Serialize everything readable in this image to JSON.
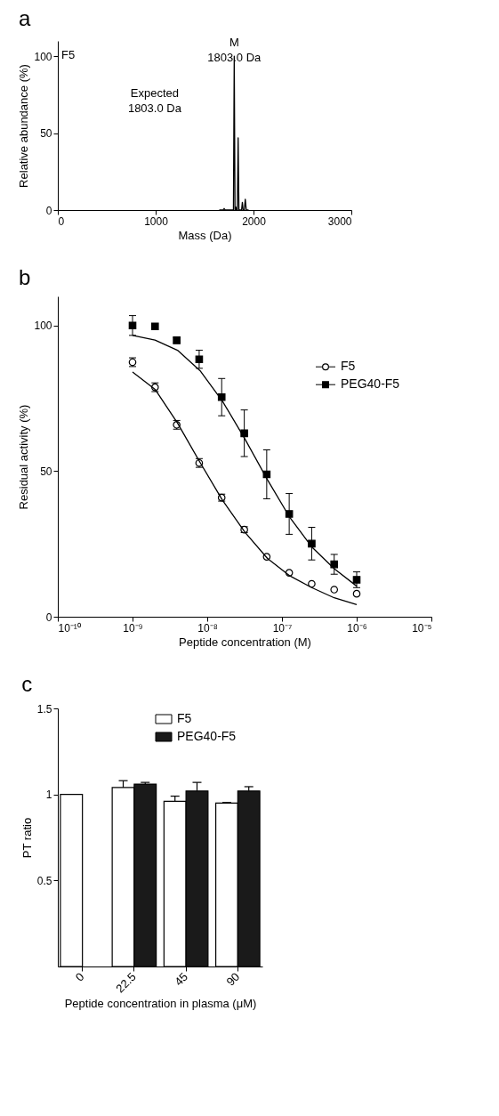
{
  "chart_data": [
    {
      "type": "line",
      "title": "a",
      "xlabel": "Mass (Da)",
      "ylabel": "Relative abundance (%)",
      "xlim": [
        0,
        3000
      ],
      "ylim": [
        0,
        110
      ],
      "xticks": [
        0,
        1000,
        2000,
        3000
      ],
      "yticks": [
        0,
        50,
        100
      ],
      "grid": false,
      "x": [
        1650,
        1690,
        1700,
        1710,
        1795,
        1803,
        1811,
        1815,
        1820,
        1825,
        1835,
        1843,
        1851,
        1878,
        1886,
        1894,
        1906,
        1916,
        1926,
        1950
      ],
      "values": [
        0,
        0,
        1,
        0,
        0,
        100,
        0,
        0,
        2,
        0,
        0,
        47,
        0,
        0,
        5,
        0,
        0,
        7,
        0,
        0
      ],
      "color": "#000000",
      "annotations": [
        "F5",
        {
          "text": "M\n1803.0 Da",
          "x": 1803,
          "y": 100
        },
        "Expected\n1803.0 Da"
      ]
    },
    {
      "type": "scatter",
      "title": "b",
      "xlabel": "Peptide concentration (M)",
      "ylabel": "Residual activity (%)",
      "log": "x",
      "grid": false,
      "legend": "right",
      "xlim": [
        1e-10,
        1e-05
      ],
      "ylim": [
        0,
        110
      ],
      "xticks": [
        {
          "value": 1e-10,
          "label": "10⁻¹⁰"
        },
        {
          "value": 1e-09,
          "label": "10⁻⁹"
        },
        {
          "value": 1e-08,
          "label": "10⁻⁸"
        },
        {
          "value": 1e-07,
          "label": "10⁻⁷"
        },
        {
          "value": 1e-06,
          "label": "10⁻⁶"
        },
        {
          "value": 1e-05,
          "label": "10⁻⁵"
        }
      ],
      "yticks": [
        0,
        50,
        100
      ],
      "x": [
        1e-09,
        2e-09,
        3.9e-09,
        7.8e-09,
        1.56e-08,
        3.13e-08,
        6.25e-08,
        1.25e-07,
        2.5e-07,
        5e-07,
        1e-06
      ],
      "series": [
        {
          "name": "F5",
          "color": "#000000",
          "marker": "circle",
          "values": [
            87.4,
            78.8,
            65.9,
            52.8,
            40.9,
            29.9,
            20.6,
            15.1,
            11.3,
            9.3,
            7.9
          ],
          "errors": [
            1.5,
            1.5,
            1.5,
            1.5,
            1.2,
            1.0,
            null,
            null,
            null,
            null,
            null
          ]
        },
        {
          "name": "PEG40-F5",
          "color": "#000000",
          "marker": "square",
          "values": [
            100,
            99.7,
            94.9,
            88.4,
            75.4,
            63.0,
            48.9,
            35.3,
            25.1,
            18.0,
            12.7
          ],
          "errors": [
            3.4,
            null,
            1.0,
            3.1,
            6.4,
            8.0,
            8.4,
            7.0,
            5.6,
            3.4,
            2.7
          ]
        },
        {
          "type": "line",
          "color": "#000000",
          "marker": "none",
          "x": [
            1e-09,
            2e-09,
            4e-09,
            8e-09,
            1.6e-08,
            3.2e-08,
            6.4e-08,
            1.28e-07,
            2.5e-07,
            5e-07,
            1e-06
          ],
          "values": [
            84.0,
            78.1,
            66.5,
            53.0,
            40.0,
            29.0,
            20.0,
            14.0,
            10.0,
            6.5,
            4.2
          ]
        },
        {
          "type": "line",
          "color": "#000000",
          "marker": "none",
          "x": [
            1e-09,
            2e-09,
            4e-09,
            8e-09,
            1.6e-08,
            3.2e-08,
            6.4e-08,
            1.28e-07,
            2.5e-07,
            5e-07,
            1e-06
          ],
          "values": [
            96.6,
            95.0,
            91.5,
            84.5,
            74.0,
            61.0,
            47.0,
            34.0,
            24.0,
            16.5,
            10.5
          ]
        }
      ]
    },
    {
      "type": "bar",
      "title": "c",
      "xlabel": "Peptide concentration in plasma (μM)",
      "ylabel": "PT ratio",
      "ylim": [
        0,
        1.5
      ],
      "yticks": [
        0.5,
        {
          "value": 1,
          "label": "1"
        },
        1.5
      ],
      "grid": false,
      "legend": "top right",
      "categories": [
        "0",
        "22.5",
        "45",
        "90"
      ],
      "series": [
        {
          "name": "F5",
          "color": "#ffffff",
          "values": [
            1.0,
            1.04,
            0.96,
            0.95
          ],
          "errors": [
            null,
            [
              1.04,
              1.08
            ],
            [
              0.96,
              0.99
            ],
            [
              0.95,
              0.953
            ]
          ]
        },
        {
          "name": "PEG40-F5",
          "color": "#1a1a1a",
          "values": [
            null,
            1.06,
            1.02,
            1.02
          ],
          "errors": [
            null,
            [
              1.06,
              1.07
            ],
            [
              1.02,
              1.07
            ],
            [
              1.02,
              1.045
            ]
          ]
        }
      ]
    }
  ]
}
